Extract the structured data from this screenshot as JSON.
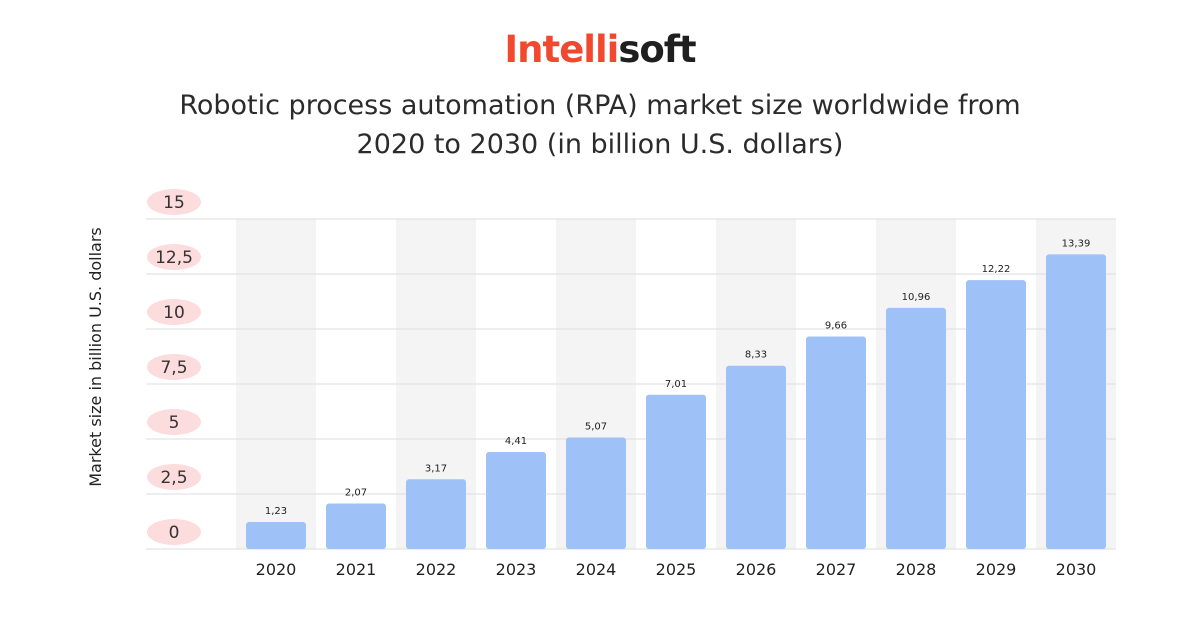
{
  "logo": {
    "part_a": "Intelli",
    "part_b": "soft"
  },
  "colors": {
    "logo_accent": "#f0492f",
    "bar": "#9ec1f7",
    "tick_pill": "#fcdcdc",
    "column_band": "#f4f4f4",
    "gridline": "#dedede"
  },
  "chart_data": {
    "type": "bar",
    "title_lines": [
      "Robotic process automation (RPA) market size worldwide from",
      "2020 to 2030 (in billion U.S. dollars)"
    ],
    "xlabel": "",
    "ylabel": "Market size in billion U.S. dollars",
    "ylim": [
      0,
      15
    ],
    "yticks": [
      {
        "value": 0,
        "label": "0"
      },
      {
        "value": 2.5,
        "label": "2,5"
      },
      {
        "value": 5,
        "label": "5"
      },
      {
        "value": 7.5,
        "label": "7,5"
      },
      {
        "value": 10,
        "label": "10"
      },
      {
        "value": 12.5,
        "label": "12,5"
      },
      {
        "value": 15,
        "label": "15"
      }
    ],
    "categories": [
      "2020",
      "2021",
      "2022",
      "2023",
      "2024",
      "2025",
      "2026",
      "2027",
      "2028",
      "2029",
      "2030"
    ],
    "values": [
      1.23,
      2.07,
      3.17,
      4.41,
      5.07,
      7.01,
      8.33,
      9.66,
      10.96,
      12.22,
      13.39
    ],
    "value_labels": [
      "1,23",
      "2,07",
      "3,17",
      "4,41",
      "5,07",
      "7,01",
      "8,33",
      "9,66",
      "10,96",
      "12,22",
      "13,39"
    ],
    "grid": true,
    "alternating_column_bands": true,
    "legend": "none"
  }
}
